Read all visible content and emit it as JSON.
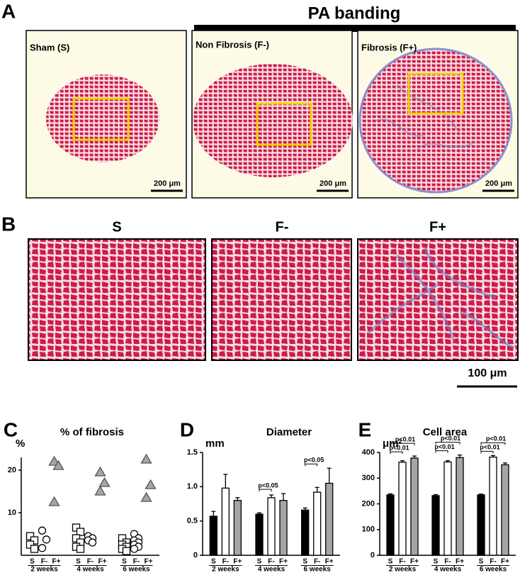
{
  "panels": {
    "A": {
      "letter": "A",
      "header": "PA banding",
      "images": [
        {
          "label": "Sham (S)",
          "scale": "200 μm"
        },
        {
          "label": "Non Fibrosis (F-)",
          "scale": "200 μm"
        },
        {
          "label": "Fibrosis (F+)",
          "scale": "200 μm"
        }
      ]
    },
    "B": {
      "letter": "B",
      "images": [
        {
          "label": "S"
        },
        {
          "label": "F-"
        },
        {
          "label": "F+"
        }
      ],
      "scale": "100 μm"
    }
  },
  "chart_data": [
    {
      "panel": "C",
      "type": "dot",
      "title": "% of fibrosis",
      "ylabel": "%",
      "categories": [
        "2 weeks",
        "4 weeks",
        "6 weeks"
      ],
      "ylim": [
        0,
        23
      ],
      "yticks": [
        10,
        20
      ],
      "series": [
        {
          "name": "S",
          "marker": "square",
          "color": "#ffffff",
          "values": [
            [
              4.5,
              3.5,
              2.5,
              1.5
            ],
            [
              6.5,
              5.5,
              4,
              3,
              2,
              1.5
            ],
            [
              4,
              3,
              2.5,
              2,
              1.5,
              1
            ]
          ]
        },
        {
          "name": "F-",
          "marker": "circle",
          "color": "#ffffff",
          "values": [
            [
              5.8,
              3.7,
              1.7
            ],
            [
              4.5,
              4,
              3.5,
              3
            ],
            [
              5,
              4,
              3.5,
              3,
              2.5,
              2,
              1.5
            ]
          ]
        },
        {
          "name": "F+",
          "marker": "triangle",
          "color": "#a6a6a6",
          "values": [
            [
              22,
              21,
              12.5
            ],
            [
              19.5,
              17,
              15
            ],
            [
              22.5,
              16.5,
              13.5
            ]
          ]
        }
      ]
    },
    {
      "panel": "D",
      "type": "bar",
      "title": "Diameter",
      "ylabel": "mm",
      "categories": [
        "2 weeks",
        "4 weeks",
        "6 weeks"
      ],
      "ylim": [
        0,
        1.5
      ],
      "yticks": [
        0,
        0.5,
        {
          "value": 1,
          "label": "1.0"
        },
        1.5
      ],
      "series": [
        {
          "name": "S",
          "color": "#000000",
          "values": [
            0.57,
            0.6,
            0.66
          ],
          "errors": [
            0.07,
            0.02,
            0.03
          ]
        },
        {
          "name": "F-",
          "color": "#ffffff",
          "values": [
            0.98,
            0.84,
            0.92
          ],
          "errors": [
            0.2,
            0.04,
            0.07
          ]
        },
        {
          "name": "F+",
          "color": "#a6a6a6",
          "values": [
            0.8,
            0.8,
            1.05
          ],
          "errors": [
            0.04,
            0.1,
            0.22
          ]
        }
      ],
      "annotations": [
        {
          "text": "p<0.05",
          "category": "4 weeks",
          "pair": [
            "S",
            "F-"
          ]
        },
        {
          "text": "p<0.05",
          "category": "6 weeks",
          "pair": [
            "S",
            "F-"
          ]
        }
      ]
    },
    {
      "panel": "E",
      "type": "bar",
      "title": "Cell area",
      "ylabel": "μm²",
      "categories": [
        "2 weeks",
        "4 weeks",
        "6 weeks"
      ],
      "ylim": [
        0,
        400
      ],
      "yticks": [
        0,
        100,
        200,
        300,
        400
      ],
      "series": [
        {
          "name": "S",
          "color": "#000000",
          "values": [
            235,
            232,
            235
          ],
          "errors": [
            4,
            4,
            3
          ]
        },
        {
          "name": "F-",
          "color": "#ffffff",
          "values": [
            362,
            363,
            382
          ],
          "errors": [
            6,
            5,
            6
          ]
        },
        {
          "name": "F+",
          "color": "#a6a6a6",
          "values": [
            378,
            380,
            352
          ],
          "errors": [
            8,
            10,
            7
          ]
        }
      ],
      "annotations": [
        {
          "text": "p<0.01",
          "category": "2 weeks",
          "pair": [
            "S",
            "F-"
          ]
        },
        {
          "text": "p<0.01",
          "category": "2 weeks",
          "pair": [
            "S",
            "F+"
          ]
        },
        {
          "text": "p<0.01",
          "category": "4 weeks",
          "pair": [
            "S",
            "F-"
          ]
        },
        {
          "text": "p<0.01",
          "category": "4 weeks",
          "pair": [
            "S",
            "F+"
          ]
        },
        {
          "text": "p<0.01",
          "category": "6 weeks",
          "pair": [
            "S",
            "F-"
          ]
        },
        {
          "text": "p<0.01",
          "category": "6 weeks",
          "pair": [
            "S",
            "F+"
          ]
        }
      ]
    }
  ]
}
